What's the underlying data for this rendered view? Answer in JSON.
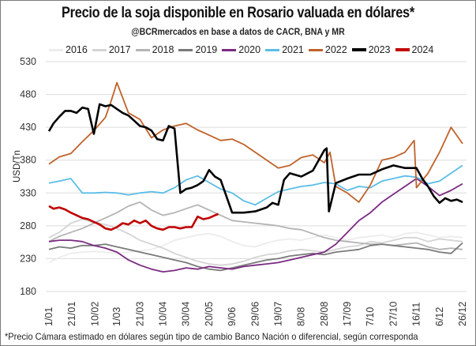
{
  "header": {
    "title": "Precio de la soja disponible en Rosario valuada en dólares*",
    "subtitle": "@BCRmercados  en base a datos de CACR,  BNA y MR"
  },
  "footnote": "*Precio Cámara estimado en dólares según tipo de cambio Banco Nación o diferencial, según corresponda",
  "chart_data": {
    "type": "line",
    "title": "Precio de la soja disponible en Rosario valuada en dólares*",
    "subtitle": "@BCRmercados  en base a datos de CACR,  BNA y MR",
    "xlabel": "",
    "ylabel": "USD/Tn",
    "ylim": [
      180,
      530
    ],
    "yticks": [
      180,
      230,
      280,
      330,
      380,
      430,
      480,
      530
    ],
    "ytick_labels": [
      "180",
      "230",
      "280",
      "330",
      "380",
      "430",
      "480",
      "530"
    ],
    "x_tick_labels": [
      "1/01",
      "21/01",
      "10/02",
      "1/03",
      "21/03",
      "10/04",
      "30/04",
      "20/05",
      "9/06",
      "29/06",
      "19/07",
      "8/08",
      "28/08",
      "17/09",
      "7/10",
      "27/10",
      "16/11",
      "6/12",
      "26/12"
    ],
    "x_unit": "day of year",
    "x_tick_days": [
      1,
      21,
      41,
      60,
      80,
      100,
      120,
      140,
      160,
      180,
      200,
      220,
      240,
      260,
      280,
      300,
      320,
      340,
      360
    ],
    "grid": true,
    "legend_position": "top",
    "series": [
      {
        "name": "2016",
        "color": "#ececec",
        "x": [
          1,
          10,
          20,
          30,
          40,
          50,
          60,
          70,
          80,
          90,
          100,
          110,
          120,
          130,
          140,
          150,
          160,
          170,
          180,
          190,
          200,
          210,
          220,
          230,
          240,
          250,
          260,
          270,
          280,
          290,
          300,
          310,
          320,
          330,
          340,
          350,
          360
        ],
        "values": [
          224,
          232,
          238,
          240,
          241,
          240,
          238,
          240,
          242,
          244,
          250,
          258,
          262,
          266,
          268,
          264,
          256,
          250,
          248,
          254,
          258,
          260,
          258,
          262,
          266,
          262,
          258,
          262,
          264,
          266,
          262,
          268,
          270,
          266,
          262,
          264,
          262
        ]
      },
      {
        "name": "2017",
        "color": "#d4d4d4",
        "x": [
          1,
          10,
          20,
          30,
          40,
          50,
          60,
          70,
          80,
          90,
          100,
          110,
          120,
          130,
          140,
          150,
          160,
          170,
          180,
          190,
          200,
          210,
          220,
          230,
          240,
          250,
          260,
          270,
          280,
          290,
          300,
          310,
          320,
          330,
          340,
          350,
          360
        ],
        "values": [
          262,
          270,
          284,
          290,
          285,
          282,
          276,
          268,
          258,
          252,
          246,
          238,
          232,
          226,
          222,
          220,
          222,
          226,
          232,
          236,
          238,
          242,
          244,
          242,
          240,
          244,
          248,
          250,
          256,
          254,
          258,
          262,
          262,
          256,
          260,
          258,
          256
        ]
      },
      {
        "name": "2018",
        "color": "#b4b4b4",
        "x": [
          1,
          10,
          20,
          30,
          40,
          50,
          60,
          70,
          80,
          90,
          100,
          110,
          120,
          130,
          140,
          150,
          160,
          170,
          180,
          190,
          200,
          210,
          220,
          230,
          240,
          250,
          260,
          270,
          280,
          290,
          300,
          310,
          320,
          330,
          340,
          350,
          360
        ],
        "values": [
          256,
          264,
          270,
          276,
          284,
          292,
          300,
          310,
          316,
          304,
          296,
          300,
          306,
          312,
          304,
          296,
          288,
          286,
          284,
          282,
          280,
          276,
          274,
          268,
          262,
          258,
          256,
          254,
          252,
          252,
          250,
          252,
          254,
          248,
          244,
          246,
          244
        ]
      },
      {
        "name": "2019",
        "color": "#7a7a7a",
        "x": [
          1,
          10,
          20,
          30,
          40,
          50,
          60,
          70,
          80,
          90,
          100,
          110,
          120,
          130,
          140,
          150,
          160,
          170,
          180,
          190,
          200,
          210,
          220,
          230,
          240,
          250,
          260,
          270,
          280,
          290,
          300,
          310,
          320,
          330,
          340,
          350,
          360
        ],
        "values": [
          244,
          248,
          246,
          250,
          250,
          252,
          248,
          244,
          240,
          236,
          232,
          228,
          224,
          218,
          214,
          212,
          216,
          220,
          224,
          228,
          230,
          234,
          236,
          238,
          236,
          240,
          242,
          244,
          250,
          252,
          250,
          248,
          246,
          244,
          240,
          238,
          254
        ]
      },
      {
        "name": "2020",
        "color": "#7b2a82",
        "x": [
          1,
          10,
          20,
          30,
          40,
          50,
          60,
          70,
          80,
          90,
          100,
          110,
          120,
          130,
          140,
          150,
          160,
          170,
          180,
          190,
          200,
          210,
          220,
          230,
          240,
          250,
          260,
          270,
          280,
          290,
          300,
          310,
          320,
          330,
          340,
          350,
          360
        ],
        "values": [
          256,
          258,
          258,
          256,
          250,
          246,
          240,
          228,
          220,
          214,
          210,
          212,
          216,
          214,
          218,
          216,
          214,
          218,
          220,
          222,
          224,
          228,
          232,
          236,
          240,
          252,
          270,
          288,
          300,
          316,
          328,
          340,
          352,
          340,
          326,
          334,
          344
        ]
      },
      {
        "name": "2021",
        "color": "#5bbde6",
        "x": [
          1,
          10,
          20,
          30,
          40,
          50,
          60,
          70,
          80,
          90,
          100,
          110,
          120,
          130,
          140,
          150,
          160,
          170,
          180,
          190,
          200,
          210,
          220,
          230,
          240,
          250,
          260,
          270,
          280,
          290,
          300,
          310,
          320,
          330,
          340,
          350,
          360
        ],
        "values": [
          345,
          348,
          352,
          330,
          330,
          331,
          330,
          327,
          330,
          332,
          330,
          338,
          350,
          356,
          346,
          336,
          330,
          318,
          312,
          322,
          332,
          336,
          340,
          342,
          346,
          344,
          334,
          340,
          338,
          348,
          352,
          356,
          354,
          344,
          348,
          360,
          372
        ]
      },
      {
        "name": "2022",
        "color": "#c0622a",
        "x": [
          1,
          10,
          20,
          30,
          40,
          50,
          55,
          60,
          70,
          80,
          90,
          100,
          110,
          120,
          130,
          140,
          150,
          160,
          170,
          180,
          190,
          200,
          210,
          220,
          230,
          240,
          245,
          250,
          260,
          270,
          280,
          290,
          300,
          310,
          318,
          320,
          330,
          340,
          350,
          360
        ],
        "values": [
          374,
          385,
          390,
          408,
          425,
          445,
          470,
          498,
          452,
          442,
          414,
          426,
          432,
          436,
          426,
          418,
          410,
          412,
          404,
          392,
          380,
          368,
          372,
          384,
          388,
          376,
          392,
          340,
          330,
          316,
          342,
          380,
          384,
          392,
          410,
          338,
          360,
          392,
          430,
          405
        ]
      },
      {
        "name": "2023",
        "color": "#000000",
        "x": [
          1,
          5,
          10,
          15,
          20,
          25,
          30,
          35,
          40,
          45,
          50,
          55,
          60,
          65,
          70,
          75,
          80,
          85,
          90,
          95,
          100,
          105,
          110,
          115,
          120,
          125,
          130,
          135,
          140,
          145,
          150,
          160,
          170,
          180,
          190,
          195,
          200,
          205,
          210,
          220,
          230,
          240,
          242,
          244,
          250,
          260,
          270,
          280,
          290,
          300,
          310,
          320,
          325,
          330,
          335,
          340,
          345,
          350,
          355,
          360
        ],
        "values": [
          424,
          436,
          446,
          455,
          455,
          452,
          460,
          458,
          420,
          465,
          462,
          464,
          458,
          452,
          448,
          440,
          432,
          430,
          425,
          412,
          410,
          432,
          428,
          330,
          336,
          338,
          342,
          348,
          365,
          355,
          350,
          300,
          300,
          302,
          308,
          315,
          312,
          350,
          360,
          355,
          364,
          395,
          398,
          302,
          345,
          352,
          358,
          358,
          366,
          372,
          368,
          368,
          352,
          340,
          325,
          315,
          322,
          318,
          320,
          316
        ]
      },
      {
        "name": "2024",
        "color": "#c00000",
        "x": [
          1,
          5,
          10,
          15,
          20,
          25,
          30,
          35,
          40,
          45,
          50,
          55,
          60,
          65,
          70,
          75,
          80,
          85,
          90,
          95,
          100,
          105,
          110,
          115,
          120,
          125,
          130,
          135,
          140,
          145,
          148
        ],
        "values": [
          310,
          306,
          308,
          305,
          300,
          296,
          292,
          290,
          286,
          282,
          276,
          274,
          278,
          284,
          282,
          288,
          284,
          288,
          280,
          276,
          274,
          278,
          278,
          276,
          278,
          278,
          294,
          290,
          292,
          296,
          298
        ]
      }
    ]
  }
}
